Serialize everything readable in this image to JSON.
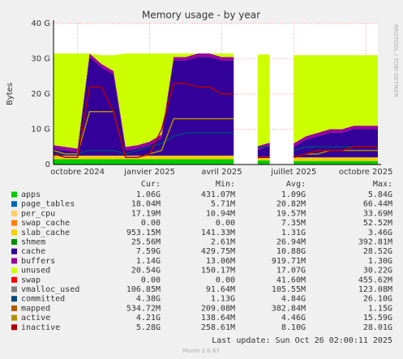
{
  "chart_data": {
    "type": "area",
    "title": "Memory usage - by year",
    "ylabel": "Bytes",
    "side_text": "RRDTOOL / TOBI OETIKER",
    "x": [
      null,
      null,
      "octobre 2024",
      null,
      null,
      null,
      null,
      null,
      "janvier 2025",
      null,
      null,
      null,
      null,
      null,
      "avril 2025",
      null,
      null,
      null,
      null,
      null,
      "juillet 2025",
      null,
      null,
      null,
      null,
      null,
      "octobre 2025",
      null
    ],
    "ylim": [
      0,
      40000000000.0
    ],
    "yticks": [
      0,
      {
        "value": 10000000000.0,
        "label": "10 G"
      },
      {
        "value": 20000000000.0,
        "label": "20 G"
      },
      {
        "value": 30000000000.0,
        "label": "30 G"
      },
      {
        "value": 40000000000.0,
        "label": "40 G"
      }
    ],
    "grid": true,
    "legend_header": [
      "Cur:",
      "Min:",
      "Avg:",
      "Max:"
    ],
    "series": [
      {
        "name": "apps",
        "color": "#00cc00",
        "style": "area",
        "cur": "1.06G",
        "min": "431.07M",
        "avg": "1.09G",
        "max": "5.84G",
        "values": [
          1500000000.0,
          1500000000.0,
          1500000000.0,
          1500000000.0,
          1500000000.0,
          1500000000.0,
          1500000000.0,
          1500000000.0,
          1500000000.0,
          1500000000.0,
          1500000000.0,
          1500000000.0,
          1500000000.0,
          1500000000.0,
          1500000000.0,
          1500000000.0,
          null,
          1200000000.0,
          1200000000.0,
          null,
          1000000000.0,
          1000000000.0,
          1000000000.0,
          1000000000.0,
          1000000000.0,
          1000000000.0,
          1000000000.0,
          1000000000.0
        ]
      },
      {
        "name": "page_tables",
        "color": "#0066b3",
        "style": "area",
        "cur": "18.04M",
        "min": "5.71M",
        "avg": "20.82M",
        "max": "66.44M"
      },
      {
        "name": "per_cpu",
        "color": "#ffcc66",
        "style": "area",
        "cur": "17.19M",
        "min": "10.94M",
        "avg": "19.57M",
        "max": "33.69M"
      },
      {
        "name": "swap_cache",
        "color": "#ff8000",
        "style": "area",
        "cur": "0.00",
        "min": "0.00",
        "avg": "7.35M",
        "max": "52.52M"
      },
      {
        "name": "slab_cache",
        "color": "#ffcc00",
        "style": "area",
        "cur": "953.15M",
        "min": "141.33M",
        "avg": "1.31G",
        "max": "3.46G",
        "values": [
          1000000000.0,
          1000000000.0,
          1000000000.0,
          1000000000.0,
          1000000000.0,
          1000000000.0,
          1000000000.0,
          1000000000.0,
          1000000000.0,
          1000000000.0,
          1000000000.0,
          1000000000.0,
          1000000000.0,
          1000000000.0,
          1000000000.0,
          1000000000.0,
          null,
          1000000000.0,
          1000000000.0,
          null,
          1000000000.0,
          1000000000.0,
          1000000000.0,
          1000000000.0,
          1000000000.0,
          1000000000.0,
          1000000000.0,
          1000000000.0
        ]
      },
      {
        "name": "shmem",
        "color": "#008f00",
        "style": "area",
        "cur": "25.56M",
        "min": "2.61M",
        "avg": "26.94M",
        "max": "392.81M"
      },
      {
        "name": "cache",
        "color": "#330099",
        "style": "area",
        "cur": "7.59G",
        "min": "429.75M",
        "avg": "10.88G",
        "max": "28.52G",
        "values": [
          2000000000.0,
          1500000000.0,
          1000000000.0,
          28000000000.0,
          25000000000.0,
          23000000000.0,
          1500000000.0,
          2000000000.0,
          3000000000.0,
          5000000000.0,
          27000000000.0,
          27000000000.0,
          28000000000.0,
          28000000000.0,
          27000000000.0,
          27000000000.0,
          null,
          2000000000.0,
          3000000000.0,
          null,
          3000000000.0,
          5000000000.0,
          6000000000.0,
          7000000000.0,
          7000000000.0,
          8000000000.0,
          8000000000.0,
          8000000000.0
        ]
      },
      {
        "name": "buffers",
        "color": "#990099",
        "style": "area",
        "cur": "1.14G",
        "min": "13.06M",
        "avg": "919.71M",
        "max": "1.30G",
        "values": [
          1000000000.0,
          1000000000.0,
          1000000000.0,
          1000000000.0,
          1000000000.0,
          1000000000.0,
          1000000000.0,
          1000000000.0,
          1000000000.0,
          1000000000.0,
          1000000000.0,
          1000000000.0,
          1000000000.0,
          1000000000.0,
          1000000000.0,
          1000000000.0,
          null,
          1000000000.0,
          1000000000.0,
          null,
          1000000000.0,
          1000000000.0,
          1000000000.0,
          1000000000.0,
          1000000000.0,
          1000000000.0,
          1000000000.0,
          1000000000.0
        ]
      },
      {
        "name": "unused",
        "color": "#ccff00",
        "style": "area",
        "cur": "20.54G",
        "min": "150.17M",
        "avg": "17.07G",
        "max": "30.22G",
        "values": [
          26000000000.0,
          26500000000.0,
          27000000000.0,
          0,
          2500000000.0,
          4500000000.0,
          26500000000.0,
          26000000000.0,
          25000000000.0,
          23000000000.0,
          1000000000.0,
          1000000000.0,
          0,
          0,
          1000000000.0,
          1000000000.0,
          null,
          26000000000.0,
          25000000000.0,
          null,
          25000000000.0,
          23000000000.0,
          22000000000.0,
          21000000000.0,
          21000000000.0,
          20000000000.0,
          20000000000.0,
          20000000000.0
        ]
      },
      {
        "name": "swap",
        "color": "#ff0000",
        "style": "area",
        "cur": "0.00",
        "min": "0.00",
        "avg": "41.60M",
        "max": "455.62M"
      },
      {
        "name": "vmalloc_used",
        "color": "#808080",
        "style": "line",
        "cur": "106.85M",
        "min": "91.64M",
        "avg": "105.55M",
        "max": "123.08M"
      },
      {
        "name": "committed",
        "color": "#00487d",
        "style": "line",
        "cur": "4.38G",
        "min": "1.13G",
        "avg": "4.84G",
        "max": "26.10G",
        "values": [
          3000000000.0,
          3000000000.0,
          3000000000.0,
          4000000000.0,
          4000000000.0,
          4000000000.0,
          3000000000.0,
          4000000000.0,
          5000000000.0,
          6000000000.0,
          8000000000.0,
          9000000000.0,
          9000000000.0,
          9000000000.0,
          9000000000.0,
          9000000000.0,
          null,
          5000000000.0,
          5000000000.0,
          null,
          4000000000.0,
          5000000000.0,
          5000000000.0,
          5000000000.0,
          5000000000.0,
          5000000000.0,
          5000000000.0,
          5000000000.0
        ]
      },
      {
        "name": "mapped",
        "color": "#b35a00",
        "style": "line",
        "cur": "534.72M",
        "min": "209.08M",
        "avg": "382.84M",
        "max": "1.15G"
      },
      {
        "name": "active",
        "color": "#b38f00",
        "style": "line",
        "cur": "4.21G",
        "min": "138.64M",
        "avg": "4.46G",
        "max": "15.59G",
        "values": [
          4000000000.0,
          3000000000.0,
          3000000000.0,
          15000000000.0,
          15000000000.0,
          15000000000.0,
          2000000000.0,
          2000000000.0,
          3000000000.0,
          4000000000.0,
          13000000000.0,
          13000000000.0,
          13000000000.0,
          13000000000.0,
          13000000000.0,
          13000000000.0,
          null,
          2000000000.0,
          2000000000.0,
          null,
          2000000000.0,
          3000000000.0,
          3000000000.0,
          4000000000.0,
          4000000000.0,
          4000000000.0,
          4000000000.0,
          4000000000.0
        ]
      },
      {
        "name": "inactive",
        "color": "#b30000",
        "style": "line",
        "cur": "5.28G",
        "min": "258.61M",
        "avg": "8.10G",
        "max": "28.01G",
        "values": [
          3000000000.0,
          2000000000.0,
          2000000000.0,
          22000000000.0,
          22000000000.0,
          15000000000.0,
          2000000000.0,
          2000000000.0,
          3000000000.0,
          10000000000.0,
          23000000000.0,
          23000000000.0,
          22000000000.0,
          22000000000.0,
          20000000000.0,
          20000000000.0,
          null,
          2000000000.0,
          2000000000.0,
          null,
          2000000000.0,
          3000000000.0,
          4000000000.0,
          4000000000.0,
          4000000000.0,
          5000000000.0,
          5000000000.0,
          5000000000.0
        ]
      }
    ],
    "last_update": "Last update: Sun Oct 26 02:00:11 2025",
    "footer": "Munin 2.0.67"
  }
}
